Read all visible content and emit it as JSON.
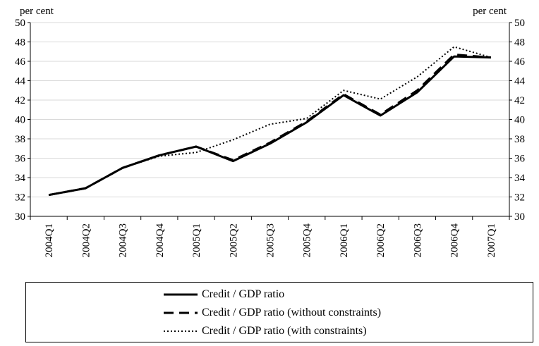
{
  "chart_data": {
    "type": "line",
    "title": "",
    "y_unit_left": "per cent",
    "y_unit_right": "per cent",
    "ylim": [
      30,
      50
    ],
    "yticks": [
      30,
      32,
      34,
      36,
      38,
      40,
      42,
      44,
      46,
      48,
      50
    ],
    "grid": true,
    "legend_position": "bottom",
    "categories": [
      "2004Q1",
      "2004Q2",
      "2004Q3",
      "2004Q4",
      "2005Q1",
      "2005Q2",
      "2005Q3",
      "2005Q4",
      "2006Q1",
      "2006Q2",
      "2006Q3",
      "2006Q4",
      "2007Q1"
    ],
    "series": [
      {
        "name": "Credit / GDP ratio",
        "style": "solid",
        "values": [
          32.2,
          32.9,
          35.0,
          36.3,
          37.2,
          35.7,
          37.5,
          39.7,
          42.5,
          40.4,
          42.8,
          46.5,
          46.4
        ]
      },
      {
        "name": "Credit / GDP ratio (without constraints)",
        "style": "dashed",
        "values": [
          32.2,
          32.9,
          35.0,
          36.3,
          37.2,
          35.8,
          37.6,
          39.8,
          42.6,
          40.5,
          43.0,
          46.7,
          46.4
        ]
      },
      {
        "name": "Credit / GDP ratio (with constraints)",
        "style": "dotted",
        "values": [
          32.2,
          32.9,
          35.0,
          36.2,
          36.6,
          37.9,
          39.5,
          40.1,
          43.0,
          42.1,
          44.4,
          47.5,
          46.4
        ]
      }
    ]
  }
}
